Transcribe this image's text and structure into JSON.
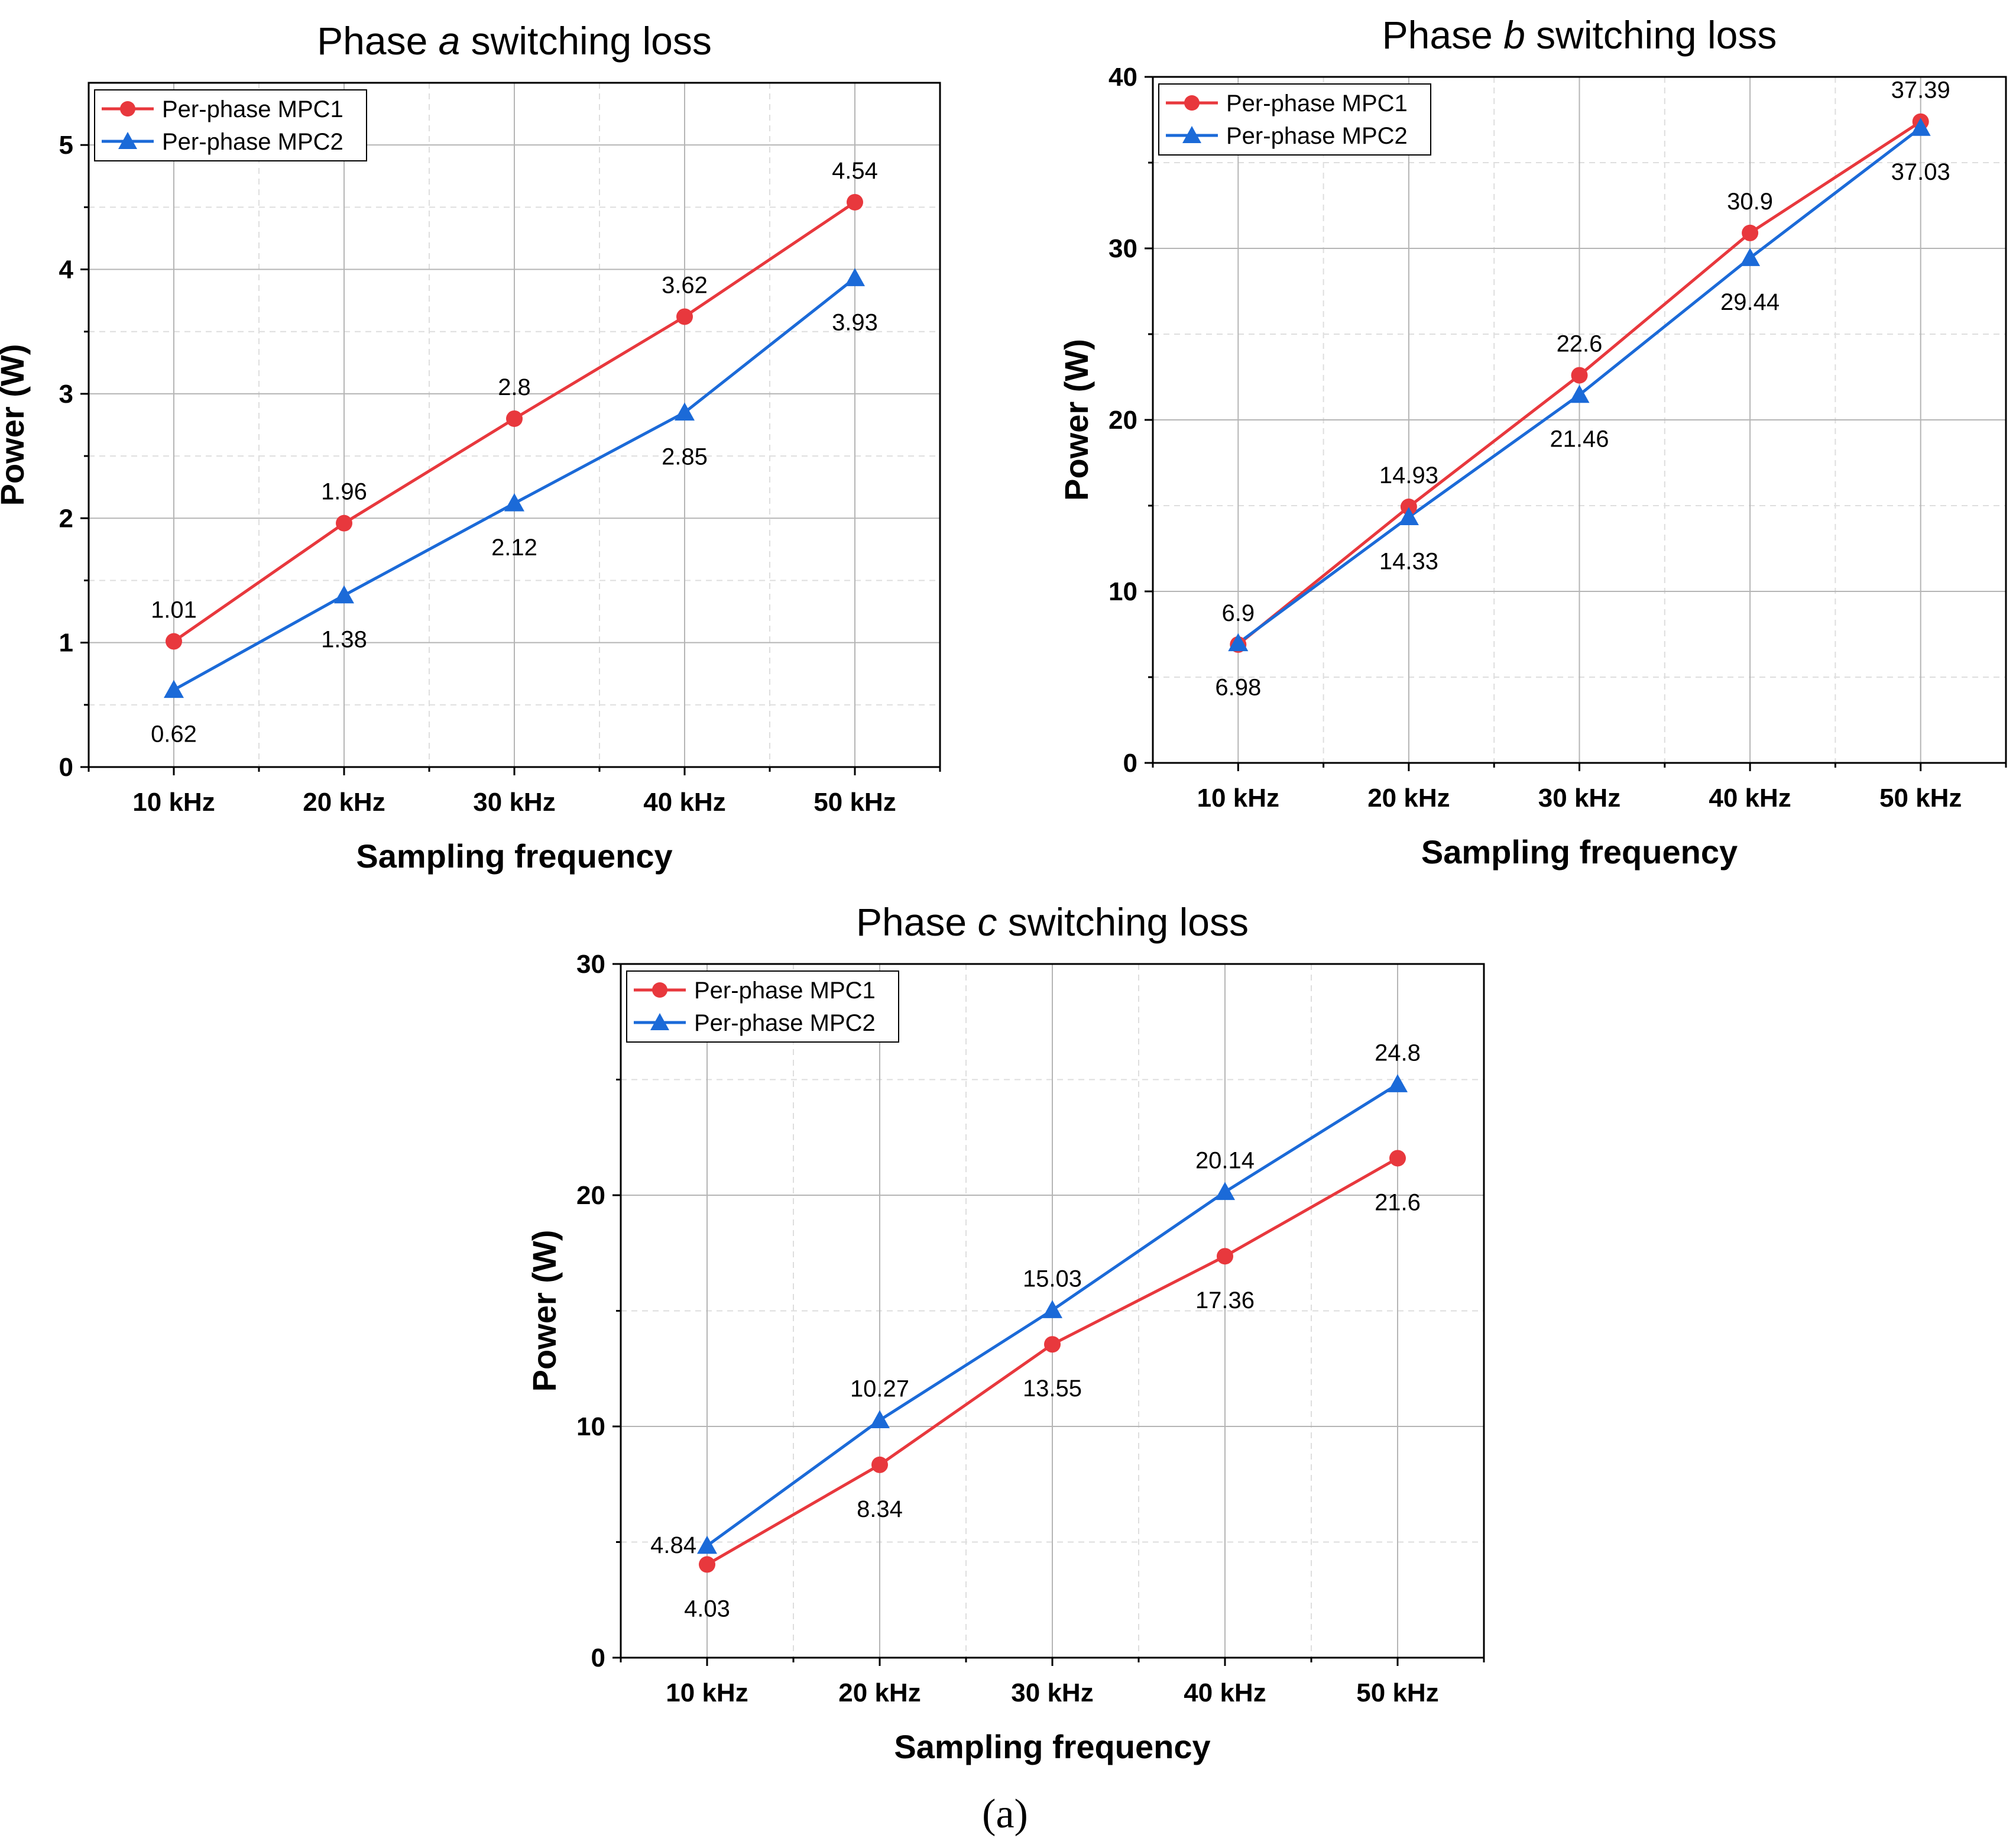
{
  "chart_data": [
    {
      "type": "line",
      "title_prefix": "Phase ",
      "title_var": "a",
      "title_suffix": " switching loss",
      "categories": [
        "10 kHz",
        "20 kHz",
        "30 kHz",
        "40 kHz",
        "50 kHz"
      ],
      "xlabel": "Sampling frequency",
      "ylabel": "Power (W)",
      "ylim": [
        0,
        5.5
      ],
      "yticks": [
        0,
        1,
        2,
        3,
        4,
        5
      ],
      "yminor": 0.5,
      "legend_position": "top-left",
      "series": [
        {
          "name": "Per-phase MPC1",
          "marker": "circle",
          "color": "#e8383d",
          "values": [
            1.01,
            1.96,
            2.8,
            3.62,
            4.54
          ],
          "labels": [
            "1.01",
            "1.96",
            "2.8",
            "3.62",
            "4.54"
          ],
          "label_side": [
            "above",
            "above",
            "above",
            "above",
            "above"
          ]
        },
        {
          "name": "Per-phase MPC2",
          "marker": "triangle",
          "color": "#1b6ad8",
          "values": [
            0.62,
            1.38,
            2.12,
            2.85,
            3.93
          ],
          "labels": [
            "0.62",
            "1.38",
            "2.12",
            "2.85",
            "3.93"
          ],
          "label_side": [
            "below",
            "below",
            "below",
            "below",
            "below"
          ]
        }
      ]
    },
    {
      "type": "line",
      "title_prefix": "Phase ",
      "title_var": "b",
      "title_suffix": " switching loss",
      "categories": [
        "10 kHz",
        "20 kHz",
        "30 kHz",
        "40 kHz",
        "50 kHz"
      ],
      "xlabel": "Sampling frequency",
      "ylabel": "Power (W)",
      "ylim": [
        0,
        40
      ],
      "yticks": [
        0,
        10,
        20,
        30,
        40
      ],
      "yminor": 5,
      "legend_position": "top-left",
      "series": [
        {
          "name": "Per-phase MPC1",
          "marker": "circle",
          "color": "#e8383d",
          "values": [
            6.9,
            14.93,
            22.6,
            30.9,
            37.39
          ],
          "labels": [
            "6.9",
            "14.93",
            "22.6",
            "30.9",
            "37.39"
          ],
          "label_side": [
            "above",
            "above",
            "above",
            "above",
            "above"
          ]
        },
        {
          "name": "Per-phase MPC2",
          "marker": "triangle",
          "color": "#1b6ad8",
          "values": [
            6.98,
            14.33,
            21.46,
            29.44,
            37.03
          ],
          "labels": [
            "6.98",
            "14.33",
            "21.46",
            "29.44",
            "37.03"
          ],
          "label_side": [
            "below",
            "below",
            "below",
            "below",
            "below"
          ]
        }
      ]
    },
    {
      "type": "line",
      "title_prefix": "Phase ",
      "title_var": "c",
      "title_suffix": " switching loss",
      "categories": [
        "10 kHz",
        "20 kHz",
        "30 kHz",
        "40 kHz",
        "50 kHz"
      ],
      "xlabel": "Sampling frequency",
      "ylabel": "Power (W)",
      "ylim": [
        0,
        30
      ],
      "yticks": [
        0,
        10,
        20,
        30
      ],
      "yminor": 5,
      "legend_position": "top-left",
      "series": [
        {
          "name": "Per-phase MPC1",
          "marker": "circle",
          "color": "#e8383d",
          "values": [
            4.03,
            8.34,
            13.55,
            17.36,
            21.6
          ],
          "labels": [
            "4.03",
            "8.34",
            "13.55",
            "17.36",
            "21.6"
          ],
          "label_side": [
            "below",
            "below",
            "below",
            "below",
            "below"
          ]
        },
        {
          "name": "Per-phase MPC2",
          "marker": "triangle",
          "color": "#1b6ad8",
          "values": [
            4.84,
            10.27,
            15.03,
            20.14,
            24.8
          ],
          "labels": [
            "4.84",
            "10.27",
            "15.03",
            "20.14",
            "24.8"
          ],
          "label_side": [
            "left",
            "above",
            "above",
            "above",
            "above"
          ]
        }
      ]
    }
  ],
  "caption": "(a)"
}
